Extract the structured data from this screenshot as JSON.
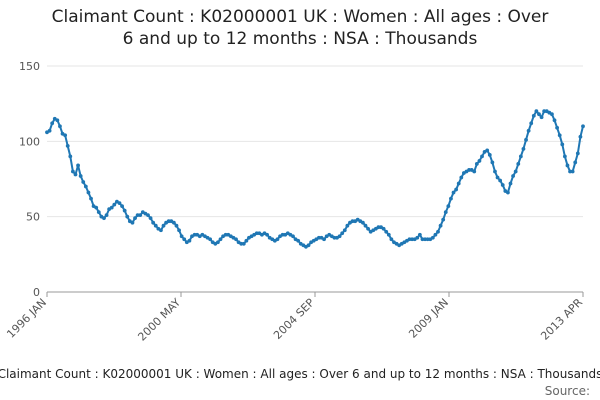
{
  "chart_data": {
    "type": "line",
    "title_lines": [
      "Claimant Count : K02000001 UK : Women : All ages : Over",
      "6 and up to 12 months : NSA : Thousands"
    ],
    "xlabel": "",
    "ylabel": "",
    "x_tick_labels": [
      "1996 JAN",
      "2000 MAY",
      "2004 SEP",
      "2009 JAN",
      "2013 APR"
    ],
    "y_ticks": [
      0,
      50,
      100,
      150
    ],
    "ylim": [
      0,
      150
    ],
    "x_range": [
      "1996-01",
      "2013-04"
    ],
    "grid": "horizontal",
    "series": [
      {
        "name": "Claimant Count : K02000001 UK : Women : All ages : Over 6 and up to 12 months : NSA : Thousands",
        "color": "#1f77b4",
        "points": [
          [
            "1996-01",
            106
          ],
          [
            "1996-02",
            107
          ],
          [
            "1996-03",
            112
          ],
          [
            "1996-04",
            115
          ],
          [
            "1996-05",
            114
          ],
          [
            "1996-06",
            110
          ],
          [
            "1996-07",
            105
          ],
          [
            "1996-08",
            104
          ],
          [
            "1996-09",
            97
          ],
          [
            "1996-10",
            90
          ],
          [
            "1996-11",
            80
          ],
          [
            "1996-12",
            78
          ],
          [
            "1997-01",
            84
          ],
          [
            "1997-02",
            77
          ],
          [
            "1997-03",
            73
          ],
          [
            "1997-04",
            70
          ],
          [
            "1997-05",
            66
          ],
          [
            "1997-06",
            62
          ],
          [
            "1997-07",
            57
          ],
          [
            "1997-08",
            56
          ],
          [
            "1997-09",
            53
          ],
          [
            "1997-10",
            50
          ],
          [
            "1997-11",
            49
          ],
          [
            "1997-12",
            51
          ],
          [
            "1998-01",
            55
          ],
          [
            "1998-02",
            56
          ],
          [
            "1998-03",
            58
          ],
          [
            "1998-04",
            60
          ],
          [
            "1998-05",
            59
          ],
          [
            "1998-06",
            57
          ],
          [
            "1998-07",
            54
          ],
          [
            "1998-08",
            50
          ],
          [
            "1998-09",
            47
          ],
          [
            "1998-10",
            46
          ],
          [
            "1998-11",
            49
          ],
          [
            "1998-12",
            51
          ],
          [
            "1999-01",
            51
          ],
          [
            "1999-02",
            53
          ],
          [
            "1999-03",
            52
          ],
          [
            "1999-04",
            51
          ],
          [
            "1999-05",
            49
          ],
          [
            "1999-06",
            46
          ],
          [
            "1999-07",
            44
          ],
          [
            "1999-08",
            42
          ],
          [
            "1999-09",
            41
          ],
          [
            "1999-10",
            44
          ],
          [
            "1999-11",
            46
          ],
          [
            "1999-12",
            47
          ],
          [
            "2000-01",
            47
          ],
          [
            "2000-02",
            46
          ],
          [
            "2000-03",
            44
          ],
          [
            "2000-04",
            41
          ],
          [
            "2000-05",
            37
          ],
          [
            "2000-06",
            35
          ],
          [
            "2000-07",
            33
          ],
          [
            "2000-08",
            34
          ],
          [
            "2000-09",
            37
          ],
          [
            "2000-10",
            38
          ],
          [
            "2000-11",
            38
          ],
          [
            "2000-12",
            37
          ],
          [
            "2001-01",
            38
          ],
          [
            "2001-02",
            37
          ],
          [
            "2001-03",
            36
          ],
          [
            "2001-04",
            35
          ],
          [
            "2001-05",
            33
          ],
          [
            "2001-06",
            32
          ],
          [
            "2001-07",
            33
          ],
          [
            "2001-08",
            35
          ],
          [
            "2001-09",
            37
          ],
          [
            "2001-10",
            38
          ],
          [
            "2001-11",
            38
          ],
          [
            "2001-12",
            37
          ],
          [
            "2002-01",
            36
          ],
          [
            "2002-02",
            35
          ],
          [
            "2002-03",
            33
          ],
          [
            "2002-04",
            32
          ],
          [
            "2002-05",
            32
          ],
          [
            "2002-06",
            34
          ],
          [
            "2002-07",
            36
          ],
          [
            "2002-08",
            37
          ],
          [
            "2002-09",
            38
          ],
          [
            "2002-10",
            39
          ],
          [
            "2002-11",
            39
          ],
          [
            "2002-12",
            38
          ],
          [
            "2003-01",
            39
          ],
          [
            "2003-02",
            38
          ],
          [
            "2003-03",
            36
          ],
          [
            "2003-04",
            35
          ],
          [
            "2003-05",
            34
          ],
          [
            "2003-06",
            35
          ],
          [
            "2003-07",
            37
          ],
          [
            "2003-08",
            38
          ],
          [
            "2003-09",
            38
          ],
          [
            "2003-10",
            39
          ],
          [
            "2003-11",
            38
          ],
          [
            "2003-12",
            37
          ],
          [
            "2004-01",
            35
          ],
          [
            "2004-02",
            34
          ],
          [
            "2004-03",
            32
          ],
          [
            "2004-04",
            31
          ],
          [
            "2004-05",
            30
          ],
          [
            "2004-06",
            31
          ],
          [
            "2004-07",
            33
          ],
          [
            "2004-08",
            34
          ],
          [
            "2004-09",
            35
          ],
          [
            "2004-10",
            36
          ],
          [
            "2004-11",
            36
          ],
          [
            "2004-12",
            35
          ],
          [
            "2005-01",
            37
          ],
          [
            "2005-02",
            38
          ],
          [
            "2005-03",
            37
          ],
          [
            "2005-04",
            36
          ],
          [
            "2005-05",
            36
          ],
          [
            "2005-06",
            37
          ],
          [
            "2005-07",
            39
          ],
          [
            "2005-08",
            41
          ],
          [
            "2005-09",
            44
          ],
          [
            "2005-10",
            46
          ],
          [
            "2005-11",
            47
          ],
          [
            "2005-12",
            47
          ],
          [
            "2006-01",
            48
          ],
          [
            "2006-02",
            47
          ],
          [
            "2006-03",
            46
          ],
          [
            "2006-04",
            44
          ],
          [
            "2006-05",
            42
          ],
          [
            "2006-06",
            40
          ],
          [
            "2006-07",
            41
          ],
          [
            "2006-08",
            42
          ],
          [
            "2006-09",
            43
          ],
          [
            "2006-10",
            43
          ],
          [
            "2006-11",
            42
          ],
          [
            "2006-12",
            40
          ],
          [
            "2007-01",
            38
          ],
          [
            "2007-02",
            35
          ],
          [
            "2007-03",
            33
          ],
          [
            "2007-04",
            32
          ],
          [
            "2007-05",
            31
          ],
          [
            "2007-06",
            32
          ],
          [
            "2007-07",
            33
          ],
          [
            "2007-08",
            34
          ],
          [
            "2007-09",
            35
          ],
          [
            "2007-10",
            35
          ],
          [
            "2007-11",
            35
          ],
          [
            "2007-12",
            36
          ],
          [
            "2008-01",
            38
          ],
          [
            "2008-02",
            35
          ],
          [
            "2008-03",
            35
          ],
          [
            "2008-04",
            35
          ],
          [
            "2008-05",
            35
          ],
          [
            "2008-06",
            36
          ],
          [
            "2008-07",
            38
          ],
          [
            "2008-08",
            40
          ],
          [
            "2008-09",
            44
          ],
          [
            "2008-10",
            48
          ],
          [
            "2008-11",
            53
          ],
          [
            "2008-12",
            57
          ],
          [
            "2009-01",
            62
          ],
          [
            "2009-02",
            66
          ],
          [
            "2009-03",
            68
          ],
          [
            "2009-04",
            72
          ],
          [
            "2009-05",
            76
          ],
          [
            "2009-06",
            79
          ],
          [
            "2009-07",
            80
          ],
          [
            "2009-08",
            81
          ],
          [
            "2009-09",
            81
          ],
          [
            "2009-10",
            80
          ],
          [
            "2009-11",
            85
          ],
          [
            "2009-12",
            87
          ],
          [
            "2010-01",
            90
          ],
          [
            "2010-02",
            93
          ],
          [
            "2010-03",
            94
          ],
          [
            "2010-04",
            91
          ],
          [
            "2010-05",
            86
          ],
          [
            "2010-06",
            80
          ],
          [
            "2010-07",
            76
          ],
          [
            "2010-08",
            74
          ],
          [
            "2010-09",
            71
          ],
          [
            "2010-10",
            67
          ],
          [
            "2010-11",
            66
          ],
          [
            "2010-12",
            72
          ],
          [
            "2011-01",
            77
          ],
          [
            "2011-02",
            80
          ],
          [
            "2011-03",
            85
          ],
          [
            "2011-04",
            90
          ],
          [
            "2011-05",
            95
          ],
          [
            "2011-06",
            101
          ],
          [
            "2011-07",
            107
          ],
          [
            "2011-08",
            112
          ],
          [
            "2011-09",
            117
          ],
          [
            "2011-10",
            120
          ],
          [
            "2011-11",
            118
          ],
          [
            "2011-12",
            116
          ],
          [
            "2012-01",
            120
          ],
          [
            "2012-02",
            120
          ],
          [
            "2012-03",
            119
          ],
          [
            "2012-04",
            118
          ],
          [
            "2012-05",
            114
          ],
          [
            "2012-06",
            109
          ],
          [
            "2012-07",
            104
          ],
          [
            "2012-08",
            98
          ],
          [
            "2012-09",
            90
          ],
          [
            "2012-10",
            84
          ],
          [
            "2012-11",
            80
          ],
          [
            "2012-12",
            80
          ],
          [
            "2013-01",
            86
          ],
          [
            "2013-02",
            92
          ],
          [
            "2013-03",
            103
          ],
          [
            "2013-04",
            110
          ]
        ]
      }
    ],
    "legend_position": "bottom",
    "legend_text": "Claimant Count : K02000001 UK : Women : All ages : Over 6 and up to 12 months : NSA : Thousands",
    "source_label": "Source:"
  }
}
